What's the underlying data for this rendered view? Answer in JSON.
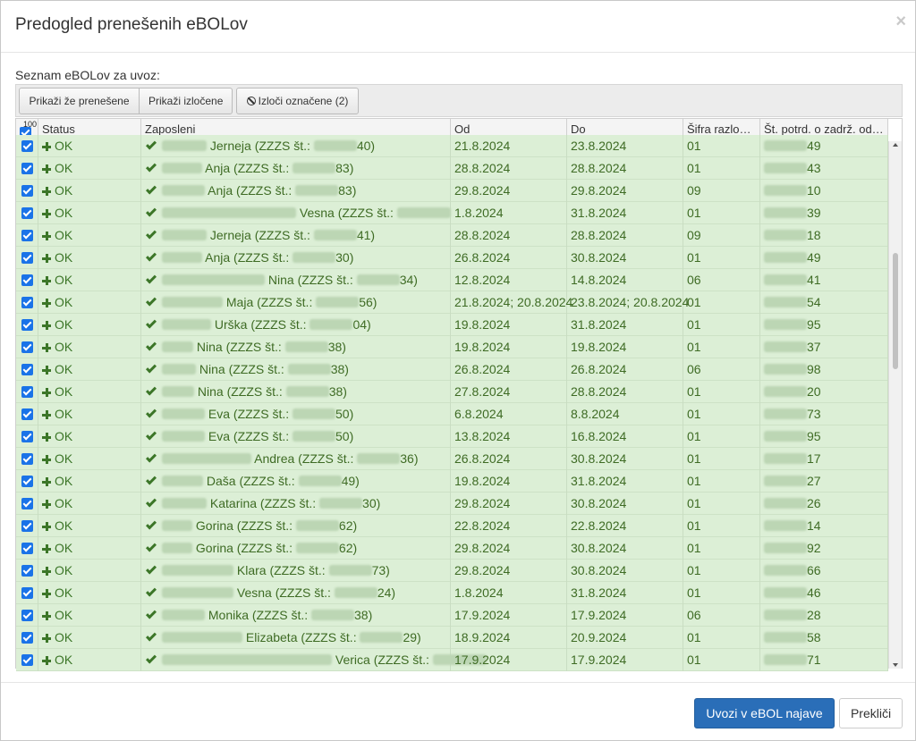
{
  "modal": {
    "title": "Predogled prenešenih eBOLov",
    "close_symbol": "×"
  },
  "list_label": "Seznam eBOLov za uvoz:",
  "toolbar": {
    "show_transferred": "Prikaži že prenešene",
    "show_excluded": "Prikaži izločene",
    "exclude_selected": "Izloči označene (2)"
  },
  "grid": {
    "selected_count": "100",
    "columns": [
      "Status",
      "Zaposleni",
      "Od",
      "Do",
      "Šifra razlo…",
      "Št. potrd. o zadrž. od…"
    ],
    "rows": [
      {
        "status": "OK",
        "name_end": "Jerneja (ZZZS št.:",
        "zzzs_end": "40)",
        "od": "21.8.2024",
        "do": "23.8.2024",
        "sifra": "01",
        "potrd_end": "49"
      },
      {
        "status": "OK",
        "name_end": "Anja (ZZZS št.:",
        "zzzs_end": "83)",
        "od": "28.8.2024",
        "do": "28.8.2024",
        "sifra": "01",
        "potrd_end": "43"
      },
      {
        "status": "OK",
        "name_end": "Anja (ZZZS št.:",
        "zzzs_end": "83)",
        "od": "29.8.2024",
        "do": "29.8.2024",
        "sifra": "09",
        "potrd_end": "10"
      },
      {
        "status": "OK",
        "name_end": "Vesna (ZZZS št.:",
        "zzzs_end": "",
        "od": "1.8.2024",
        "do": "31.8.2024",
        "sifra": "01",
        "potrd_end": "39"
      },
      {
        "status": "OK",
        "name_end": "Jerneja (ZZZS št.:",
        "zzzs_end": "41)",
        "od": "28.8.2024",
        "do": "28.8.2024",
        "sifra": "09",
        "potrd_end": "18"
      },
      {
        "status": "OK",
        "name_end": "Anja (ZZZS št.:",
        "zzzs_end": "30)",
        "od": "26.8.2024",
        "do": "30.8.2024",
        "sifra": "01",
        "potrd_end": "49"
      },
      {
        "status": "OK",
        "name_end": "Nina (ZZZS št.:",
        "zzzs_end": "34)",
        "od": "12.8.2024",
        "do": "14.8.2024",
        "sifra": "06",
        "potrd_end": "41"
      },
      {
        "status": "OK",
        "name_end": "Maja (ZZZS št.:",
        "zzzs_end": "56)",
        "od": "21.8.2024; 20.8.2024",
        "do": "23.8.2024; 20.8.2024",
        "sifra": "01",
        "potrd_end": "54"
      },
      {
        "status": "OK",
        "name_end": "Urška (ZZZS št.:",
        "zzzs_end": "04)",
        "od": "19.8.2024",
        "do": "31.8.2024",
        "sifra": "01",
        "potrd_end": "95"
      },
      {
        "status": "OK",
        "name_end": "Nina (ZZZS št.:",
        "zzzs_end": "38)",
        "od": "19.8.2024",
        "do": "19.8.2024",
        "sifra": "01",
        "potrd_end": "37"
      },
      {
        "status": "OK",
        "name_end": "Nina (ZZZS št.:",
        "zzzs_end": "38)",
        "od": "26.8.2024",
        "do": "26.8.2024",
        "sifra": "06",
        "potrd_end": "98"
      },
      {
        "status": "OK",
        "name_end": "Nina (ZZZS št.:",
        "zzzs_end": "38)",
        "od": "27.8.2024",
        "do": "28.8.2024",
        "sifra": "01",
        "potrd_end": "20"
      },
      {
        "status": "OK",
        "name_end": "Eva (ZZZS št.:",
        "zzzs_end": "50)",
        "od": "6.8.2024",
        "do": "8.8.2024",
        "sifra": "01",
        "potrd_end": "73"
      },
      {
        "status": "OK",
        "name_end": "Eva (ZZZS št.:",
        "zzzs_end": "50)",
        "od": "13.8.2024",
        "do": "16.8.2024",
        "sifra": "01",
        "potrd_end": "95"
      },
      {
        "status": "OK",
        "name_end": "Andrea (ZZZS št.:",
        "zzzs_end": "36)",
        "od": "26.8.2024",
        "do": "30.8.2024",
        "sifra": "01",
        "potrd_end": "17"
      },
      {
        "status": "OK",
        "name_end": "Daša (ZZZS št.:",
        "zzzs_end": "49)",
        "od": "19.8.2024",
        "do": "31.8.2024",
        "sifra": "01",
        "potrd_end": "27"
      },
      {
        "status": "OK",
        "name_end": "Katarina (ZZZS št.:",
        "zzzs_end": "30)",
        "od": "29.8.2024",
        "do": "30.8.2024",
        "sifra": "01",
        "potrd_end": "26"
      },
      {
        "status": "OK",
        "name_end": "Gorina (ZZZS št.:",
        "zzzs_end": "62)",
        "od": "22.8.2024",
        "do": "22.8.2024",
        "sifra": "01",
        "potrd_end": "14"
      },
      {
        "status": "OK",
        "name_end": "Gorina (ZZZS št.:",
        "zzzs_end": "62)",
        "od": "29.8.2024",
        "do": "30.8.2024",
        "sifra": "01",
        "potrd_end": "92"
      },
      {
        "status": "OK",
        "name_end": "Klara (ZZZS št.:",
        "zzzs_end": "73)",
        "od": "29.8.2024",
        "do": "30.8.2024",
        "sifra": "01",
        "potrd_end": "66"
      },
      {
        "status": "OK",
        "name_end": "Vesna (ZZZS št.:",
        "zzzs_end": "24)",
        "od": "1.8.2024",
        "do": "31.8.2024",
        "sifra": "01",
        "potrd_end": "46"
      },
      {
        "status": "OK",
        "name_end": "Monika (ZZZS št.:",
        "zzzs_end": "38)",
        "od": "17.9.2024",
        "do": "17.9.2024",
        "sifra": "06",
        "potrd_end": "28"
      },
      {
        "status": "OK",
        "name_end": "Elizabeta (ZZZS št.:",
        "zzzs_end": "29)",
        "od": "18.9.2024",
        "do": "20.9.2024",
        "sifra": "01",
        "potrd_end": "58"
      },
      {
        "status": "OK",
        "name_end": "Verica (ZZZS št.:",
        "zzzs_end": "",
        "od": "17.9.2024",
        "do": "17.9.2024",
        "sifra": "01",
        "potrd_end": "71"
      }
    ]
  },
  "footer": {
    "import_label": "Uvozi v eBOL najave",
    "cancel_label": "Prekliči"
  },
  "colors": {
    "row_bg": "#dcefd6",
    "ok_green": "#3c7628",
    "primary": "#2a6eb8",
    "checkbox": "#1a73e8"
  }
}
